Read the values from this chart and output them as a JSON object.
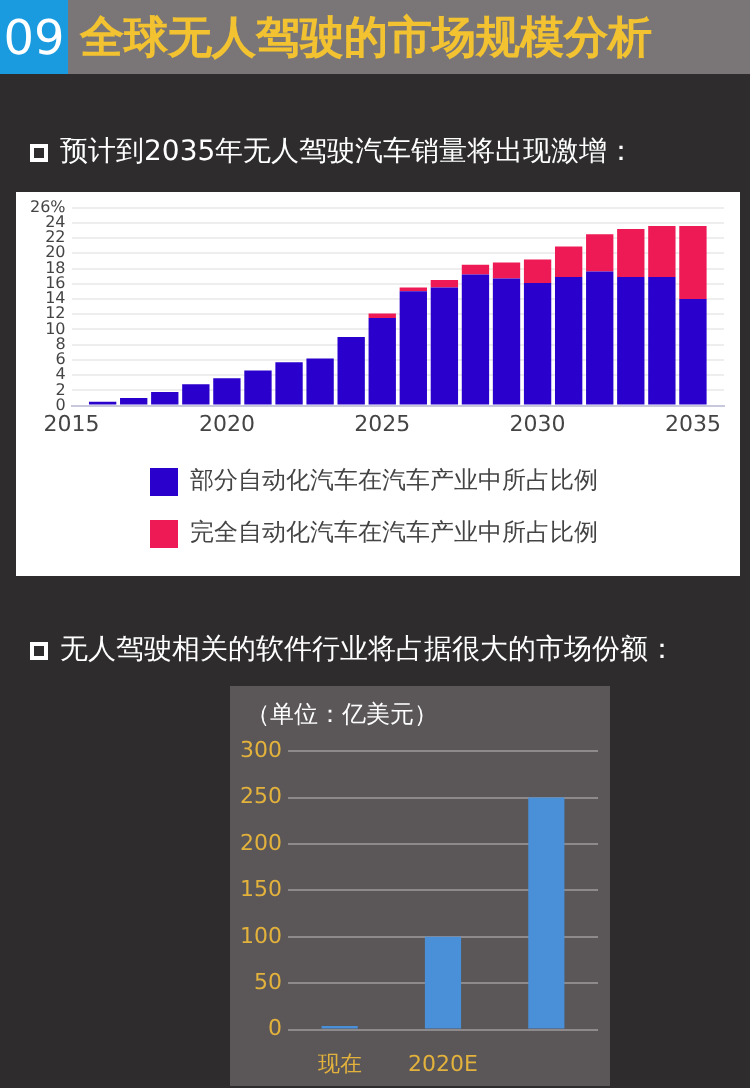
{
  "chart_data": [
    {
      "type": "bar",
      "title": "全球无人驾驶的市场规模分析",
      "subtitle": "预计到2035年无人驾驶汽车销量将出现激增：",
      "annotations": [
        "09"
      ],
      "x": [
        2016,
        2017,
        2018,
        2019,
        2020,
        2021,
        2022,
        2023,
        2024,
        2025,
        2026,
        2027,
        2028,
        2029,
        2030,
        2031,
        2032,
        2033,
        2034,
        2035
      ],
      "stacked": true,
      "series": [
        {
          "name": "部分自动化汽车在汽车产业中所占比例",
          "color": "#2a00cc",
          "values": [
            0.5,
            1.0,
            1.8,
            2.8,
            3.6,
            4.6,
            5.7,
            6.2,
            9.0,
            11.5,
            15.0,
            15.5,
            17.2,
            16.7,
            16.1,
            16.9,
            17.6,
            16.9,
            16.9,
            14.0
          ]
        },
        {
          "name": "完全自动化汽车在汽车产业中所占比例",
          "color": "#ee1a55",
          "values": [
            0,
            0,
            0,
            0,
            0,
            0,
            0,
            0,
            0,
            0.6,
            0.5,
            1.0,
            1.3,
            2.1,
            3.1,
            4.0,
            4.9,
            6.3,
            6.7,
            9.6
          ]
        }
      ],
      "xlim": [
        2015,
        2036
      ],
      "xticks": [
        2015,
        2020,
        2025,
        2030,
        2035
      ],
      "ylim": [
        0,
        26
      ],
      "yticks": [
        0,
        2,
        4,
        6,
        8,
        10,
        12,
        14,
        16,
        18,
        20,
        22,
        24,
        {
          "value": 26,
          "label": "26%"
        }
      ],
      "grid": "y",
      "legend": "bottom"
    },
    {
      "type": "bar",
      "title": "无人驾驶相关的软件行业将占据很大的市场份额：",
      "ylabel": "（单位：亿美元）",
      "categories": [
        "现在",
        "2020E",
        null
      ],
      "values": [
        4,
        100,
        250
      ],
      "color": "#4a90d9",
      "ylim": [
        0,
        300
      ],
      "yticks": [
        0,
        50,
        100,
        150,
        200,
        250,
        300
      ],
      "grid": "y",
      "legend": false
    }
  ]
}
